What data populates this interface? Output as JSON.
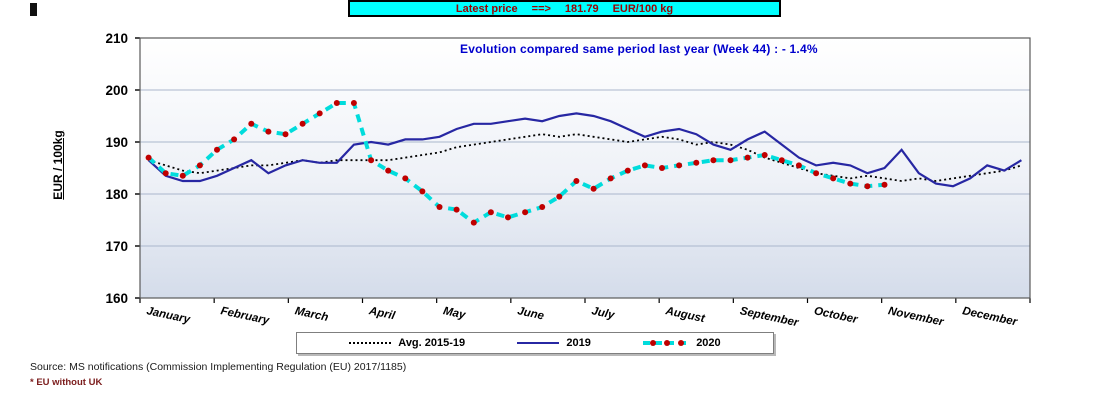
{
  "banner": {
    "label": "Latest price",
    "arrow": "==>",
    "value": "181.79",
    "unit": "EUR/100 kg"
  },
  "annotation": "Evolution compared same period last year  (Week 44) : - 1.4%",
  "y_axis_title": "EUR / 100kg",
  "legend": {
    "items": [
      "Avg. 2015-19",
      "2019",
      "2020"
    ]
  },
  "source_line1": "Source: MS notifications (Commission Implementing Regulation (EU) 2017/1185)",
  "source_line2": "* EU without UK",
  "colors": {
    "banner_bg": "#00ffff",
    "banner_text": "#9c0000",
    "annotation_text": "#0000cd",
    "avg_line": "#000000",
    "line_2019": "#2727a3",
    "line_2020": "#00dcdc",
    "marker_2020": "#c00000",
    "gridline": "#aab6cc",
    "plot_bg_bottom": "#d4dcea"
  },
  "chart_data": {
    "type": "line",
    "title": "",
    "xlabel": "",
    "ylabel": "EUR / 100kg",
    "x_unit": "week",
    "weeks_total": 52,
    "months": [
      "January",
      "February",
      "March",
      "April",
      "May",
      "June",
      "July",
      "August",
      "September",
      "October",
      "November",
      "December"
    ],
    "ylim": [
      160,
      210
    ],
    "yticks": [
      160,
      170,
      180,
      190,
      200,
      210
    ],
    "grid": "horizontal",
    "legend_position": "bottom",
    "series": [
      {
        "name": "Avg. 2015-19",
        "style": "dotted",
        "color": "#000000",
        "values": [
          186.5,
          185.5,
          184.5,
          184,
          184.5,
          185,
          185.5,
          185.5,
          186,
          186.5,
          186,
          186.5,
          186.5,
          186.5,
          186.5,
          187,
          187.5,
          188,
          189,
          189.5,
          190,
          190.5,
          191,
          191.5,
          191,
          191.5,
          191,
          190.5,
          190,
          190.5,
          191,
          190.5,
          189.5,
          190,
          189.5,
          188.5,
          187,
          186,
          185,
          184,
          183.5,
          183,
          183.5,
          183,
          182.5,
          183,
          182.5,
          183,
          183.5,
          184,
          184.5,
          185.5
        ]
      },
      {
        "name": "2019",
        "style": "solid",
        "color": "#2727a3",
        "values": [
          186.5,
          183.5,
          182.5,
          182.5,
          183.5,
          185,
          186.5,
          184,
          185.5,
          186.5,
          186,
          186,
          189.5,
          190,
          189.5,
          190.5,
          190.5,
          191,
          192.5,
          193.5,
          193.5,
          194,
          194.5,
          194,
          195,
          195.5,
          195,
          194,
          192.5,
          191,
          192,
          192.5,
          191.5,
          189.5,
          188.5,
          190.5,
          192,
          189.5,
          187,
          185.5,
          186,
          185.5,
          184,
          185,
          188.5,
          184,
          182,
          181.5,
          183,
          185.5,
          184.5,
          186.5
        ]
      },
      {
        "name": "2020",
        "style": "dashed",
        "color": "#00dcdc",
        "marker_color": "#c00000",
        "values": [
          187,
          184,
          183.5,
          185.5,
          188.5,
          190.5,
          193.5,
          192,
          191.5,
          193.5,
          195.5,
          197.5,
          197.5,
          186.5,
          184.5,
          183,
          180.5,
          177.5,
          177,
          174.5,
          176.5,
          175.5,
          176.5,
          177.5,
          179.5,
          182.5,
          181,
          183,
          184.5,
          185.5,
          185,
          185.5,
          186,
          186.5,
          186.5,
          187,
          187.5,
          186.5,
          185.5,
          184,
          183,
          182,
          181.5,
          181.79
        ]
      }
    ]
  }
}
